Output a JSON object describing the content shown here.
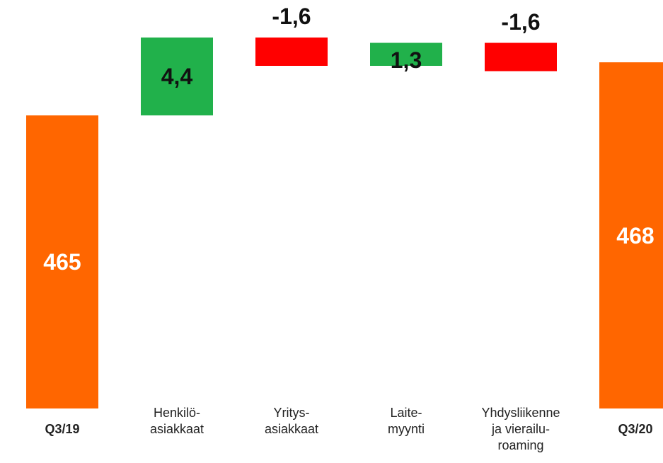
{
  "chart_data": {
    "type": "waterfall",
    "categories": [
      "Q3/19",
      "Henkilö-\nasiakkaat",
      "Yritys-\nasiakkaat",
      "Laite-\nmyynti",
      "Yhdysliikenne\nja vierailu-\nroaming",
      "Q3/20"
    ],
    "values": [
      465,
      4.4,
      -1.6,
      1.3,
      -1.6,
      468
    ],
    "value_labels": [
      "465",
      "4,4",
      "-1,6",
      "1,3",
      "-1,6",
      "468"
    ],
    "kinds": [
      "total",
      "delta",
      "delta",
      "delta",
      "delta",
      "total"
    ],
    "colors": [
      "#ff6600",
      "#21b14b",
      "#ff0000",
      "#21b14b",
      "#ff0000",
      "#ff6600"
    ]
  }
}
